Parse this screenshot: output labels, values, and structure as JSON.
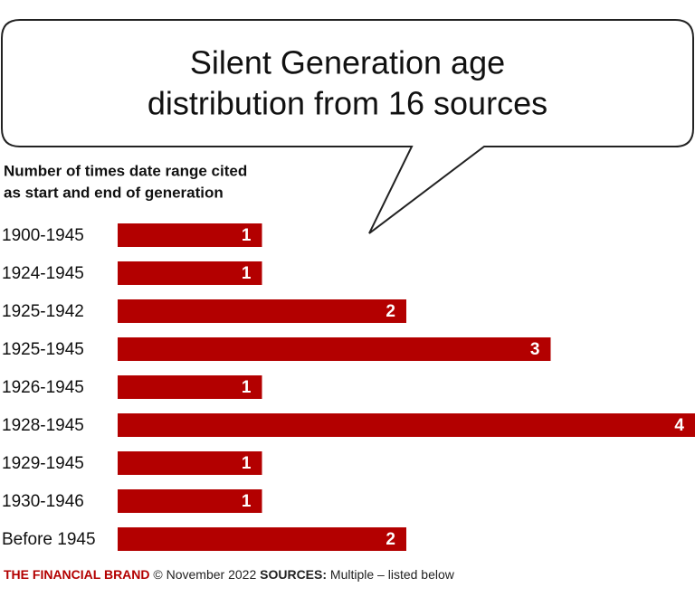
{
  "chart_data": {
    "type": "bar",
    "orientation": "horizontal",
    "title": [
      "Silent Generation age",
      "distribution from 16 sources"
    ],
    "subtitle": [
      "Number of times date range cited",
      "as start and end of generation"
    ],
    "categories": [
      "1900-1945",
      "1924-1945",
      "1925-1942",
      "1925-1945",
      "1926-1945",
      "1928-1945",
      "1929-1945",
      "1930-1946",
      "Before 1945"
    ],
    "values": [
      1,
      1,
      2,
      3,
      1,
      4,
      1,
      1,
      2
    ],
    "color": "#b30000",
    "xlim": [
      0,
      4
    ]
  },
  "footer": {
    "brand": "THE FINANCIAL BRAND",
    "date": "© November 2022",
    "sources_label": "SOURCES:",
    "sources": "Multiple – listed below"
  }
}
